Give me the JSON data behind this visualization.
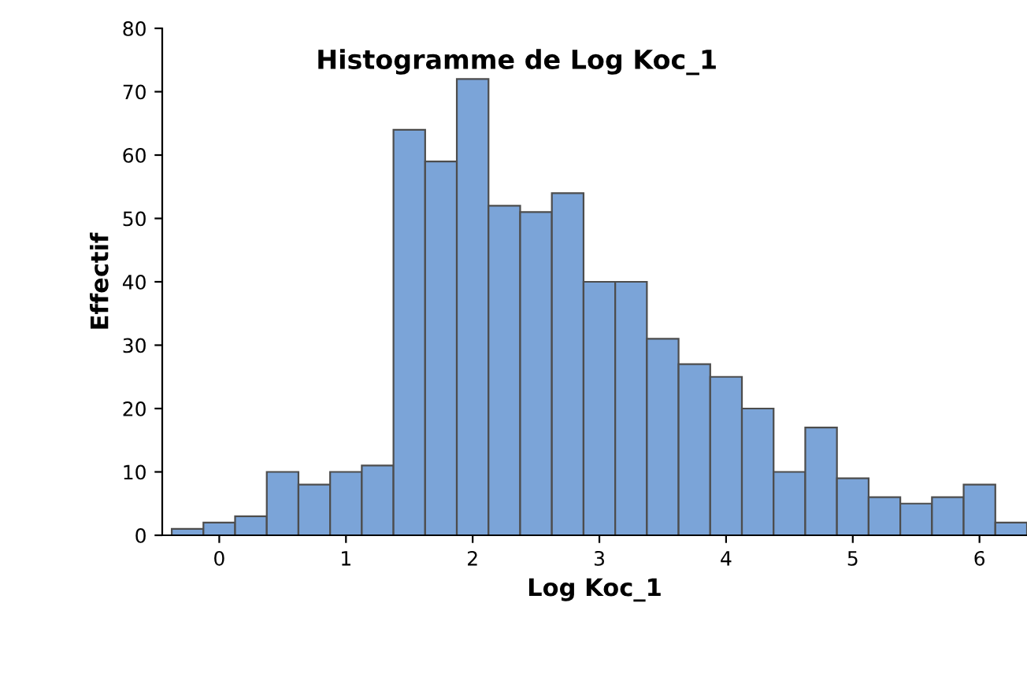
{
  "chart_data": {
    "type": "histogram",
    "title": "Histogramme de Log Koc_1",
    "xlabel": "Log Koc_1",
    "ylabel": "Effectif",
    "bins": [
      -0.375,
      -0.125,
      0.125,
      0.375,
      0.625,
      0.875,
      1.125,
      1.375,
      1.625,
      1.875,
      2.125,
      2.375,
      2.625,
      2.875,
      3.125,
      3.375,
      3.625,
      3.875,
      4.125,
      4.375,
      4.625,
      4.875,
      5.125,
      5.375,
      5.625,
      5.875,
      6.125,
      6.375
    ],
    "values": [
      1,
      2,
      3,
      10,
      8,
      10,
      11,
      64,
      59,
      72,
      52,
      51,
      54,
      40,
      40,
      31,
      27,
      25,
      20,
      10,
      17,
      9,
      6,
      5,
      6,
      8,
      2
    ],
    "color": "#7ba4d8",
    "xlim": [
      -0.45,
      6.375
    ],
    "ylim": [
      0,
      80
    ],
    "xticks": [
      0,
      1,
      2,
      3,
      4,
      5,
      6
    ],
    "yticks": [
      0,
      10,
      20,
      30,
      40,
      50,
      60,
      70,
      80
    ],
    "grid": false
  }
}
